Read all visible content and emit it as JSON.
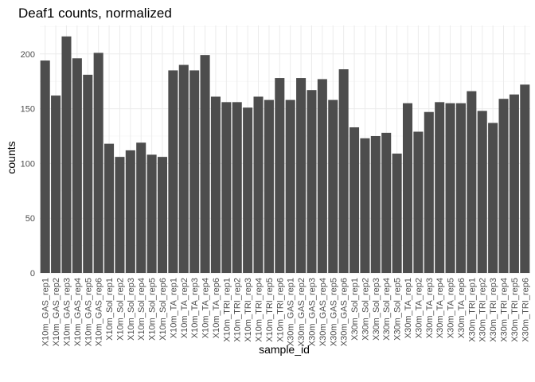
{
  "chart_data": {
    "type": "bar",
    "title": "Deaf1 counts, normalized",
    "xlabel": "sample_id",
    "ylabel": "counts",
    "ylim": [
      0,
      226
    ],
    "yticks": [
      0,
      50,
      100,
      150,
      200
    ],
    "grid": true,
    "categories": [
      "X10m_GAS_rep1",
      "X10m_GAS_rep2",
      "X10m_GAS_rep3",
      "X10m_GAS_rep4",
      "X10m_GAS_rep5",
      "X10m_GAS_rep6",
      "X10m_Sol_rep1",
      "X10m_Sol_rep2",
      "X10m_Sol_rep3",
      "X10m_Sol_rep4",
      "X10m_Sol_rep5",
      "X10m_Sol_rep6",
      "X10m_TA_rep1",
      "X10m_TA_rep2",
      "X10m_TA_rep3",
      "X10m_TA_rep4",
      "X10m_TA_rep6",
      "X10m_TRI_rep1",
      "X10m_TRI_rep2",
      "X10m_TRI_rep3",
      "X10m_TRI_rep4",
      "X10m_TRI_rep5",
      "X10m_TRI_rep6",
      "X30m_GAS_rep1",
      "X30m_GAS_rep2",
      "X30m_GAS_rep3",
      "X30m_GAS_rep4",
      "X30m_GAS_rep5",
      "X30m_GAS_rep6",
      "X30m_Sol_rep1",
      "X30m_Sol_rep2",
      "X30m_Sol_rep3",
      "X30m_Sol_rep4",
      "X30m_Sol_rep5",
      "X30m_TA_rep1",
      "X30m_TA_rep2",
      "X30m_TA_rep3",
      "X30m_TA_rep4",
      "X30m_TA_rep5",
      "X30m_TA_rep6",
      "X30m_TRI_rep1",
      "X30m_TRI_rep2",
      "X30m_TRI_rep3",
      "X30m_TRI_rep4",
      "X30m_TRI_rep5",
      "X30m_TRI_rep6"
    ],
    "values": [
      194,
      162,
      216,
      196,
      181,
      201,
      118,
      106,
      112,
      119,
      108,
      106,
      185,
      190,
      185,
      199,
      161,
      156,
      156,
      151,
      161,
      158,
      178,
      158,
      178,
      167,
      177,
      158,
      186,
      133,
      123,
      125,
      128,
      109,
      155,
      129,
      147,
      156,
      155,
      155,
      166,
      148,
      137,
      159,
      163,
      172
    ],
    "bar_color": "#4d4d4d"
  }
}
